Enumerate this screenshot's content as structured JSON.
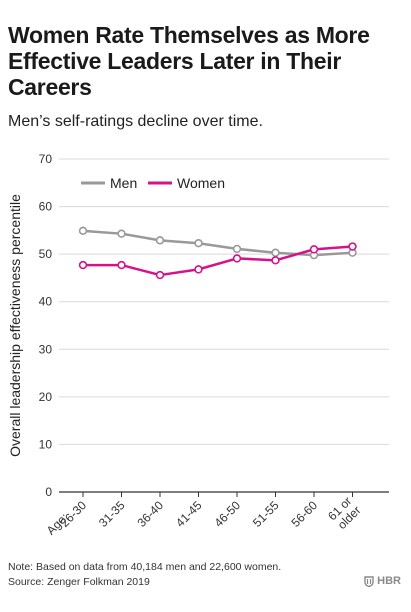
{
  "header": {
    "title": "Women Rate Themselves as More Effective Leaders Later in Their Careers",
    "subtitle": "Men’s self-ratings decline over time."
  },
  "footer": {
    "note": "Note: Based on data from 40,184 men and 22,600 women.",
    "source": "Source: Zenger Folkman 2019",
    "brand": "HBR",
    "brand_icon": "hbr-shield-icon"
  },
  "colors": {
    "men": "#999999",
    "women": "#d6128a",
    "grid": "#d9d9d9",
    "axis": "#333333"
  },
  "chart_data": {
    "type": "line",
    "title": "Women Rate Themselves as More Effective Leaders Later in Their Careers",
    "subtitle": "Men’s self-ratings decline over time.",
    "xlabel": "",
    "ylabel": "Overall leadership effectiveness percentile",
    "x_prefix": "Age:",
    "categories": [
      "26-30",
      "31-35",
      "36-40",
      "41-45",
      "46-50",
      "51-55",
      "56-60",
      "61 or older"
    ],
    "ylim": [
      0,
      70
    ],
    "yticks": [
      0,
      10,
      20,
      30,
      40,
      50,
      60,
      70
    ],
    "grid": true,
    "legend": "top-left",
    "series": [
      {
        "name": "Men",
        "color": "#999999",
        "values": [
          54.9,
          54.3,
          52.9,
          52.3,
          51.1,
          50.3,
          49.8,
          50.3
        ]
      },
      {
        "name": "Women",
        "color": "#d6128a",
        "values": [
          47.7,
          47.7,
          45.6,
          46.8,
          49.1,
          48.7,
          51.0,
          51.6
        ]
      }
    ]
  }
}
